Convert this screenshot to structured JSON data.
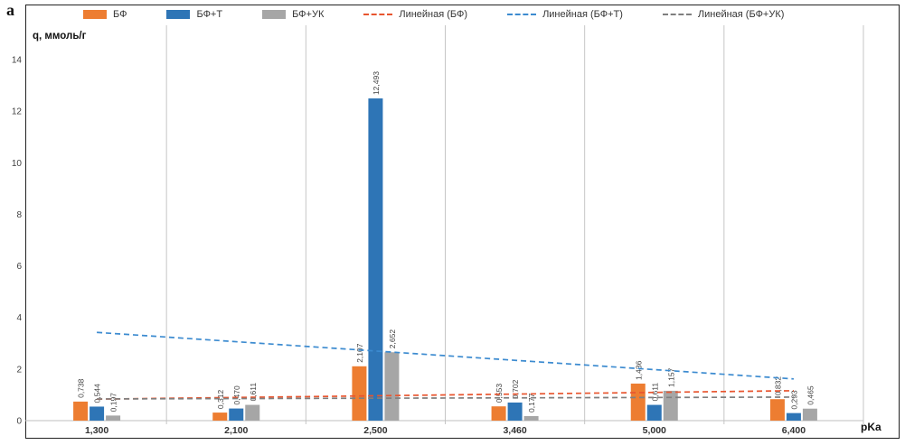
{
  "corner_label": "а",
  "chart_data": {
    "type": "bar",
    "title": "",
    "xlabel": "pKa",
    "ylabel": "q, ммоль/г",
    "categories": [
      "1,300",
      "2,100",
      "2,500",
      "3,460",
      "5,000",
      "6,400"
    ],
    "series": [
      {
        "name": "БФ",
        "color": "#ED7D31",
        "values": [
          0.738,
          0.312,
          2.107,
          0.553,
          1.436,
          0.832
        ],
        "labels": [
          "0,738",
          "0,312",
          "2,107",
          "0,553",
          "1,436",
          "0,832"
        ]
      },
      {
        "name": "БФ+Т",
        "color": "#2E75B6",
        "values": [
          0.544,
          0.47,
          12.493,
          0.702,
          0.611,
          0.293
        ],
        "labels": [
          "0,544",
          "0,470",
          "12,493",
          "0,702",
          "0,611",
          "0,293"
        ]
      },
      {
        "name": "БФ+УК",
        "color": "#A6A6A6",
        "values": [
          0.197,
          0.611,
          2.652,
          0.177,
          1.157,
          0.465
        ],
        "labels": [
          "0,197",
          "0,611",
          "2,652",
          "0,177",
          "1,157",
          "0,465"
        ]
      }
    ],
    "trendlines": [
      {
        "name": "Линейная (БФ)",
        "color": "#E8552F",
        "start": 0.833,
        "end": 1.16
      },
      {
        "name": "Линейная (БФ+Т)",
        "color": "#3C8BD0",
        "start": 3.421,
        "end": 1.617
      },
      {
        "name": "Линейная (БФ+УК)",
        "color": "#7F7F7F",
        "start": 0.841,
        "end": 0.912
      }
    ],
    "y_ticks": [
      0,
      2,
      4,
      6,
      8,
      10,
      12,
      14
    ],
    "ylim": [
      0,
      14
    ],
    "grid": "vertical",
    "legend_position": "top"
  }
}
